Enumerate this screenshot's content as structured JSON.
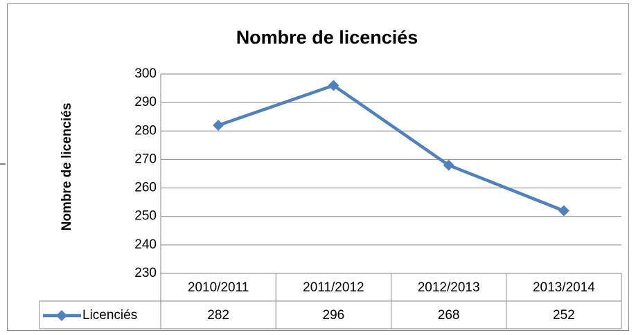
{
  "chart_data": {
    "type": "line",
    "title": "Nombre de licenciés",
    "y_label": "Nombre de licenciés",
    "categories": [
      "2010/2011",
      "2011/2012",
      "2012/2013",
      "2013/2014"
    ],
    "series": [
      {
        "name": "Licenciés",
        "color": "#4f81bd",
        "values": [
          282,
          296,
          268,
          252
        ]
      }
    ],
    "ylim": [
      230,
      300
    ],
    "yticks": [
      230,
      240,
      250,
      260,
      270,
      280,
      290,
      300
    ],
    "grid": true,
    "data_table": true
  }
}
